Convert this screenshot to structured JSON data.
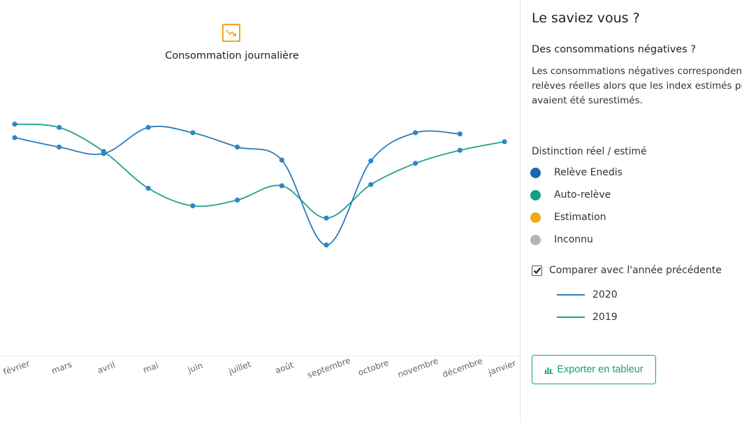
{
  "chart_data": {
    "type": "line",
    "title": "Consommation journalière",
    "categories": [
      "février",
      "mars",
      "avril",
      "mai",
      "juin",
      "juillet",
      "août",
      "septembre",
      "octobre",
      "novembre",
      "décembre",
      "janvier"
    ],
    "series": [
      {
        "name": "2020",
        "color": "#2b7bb9",
        "values": [
          6.34,
          6.11,
          5.95,
          6.59,
          6.46,
          6.11,
          5.79,
          3.71,
          5.77,
          6.46,
          6.43,
          null
        ]
      },
      {
        "name": "2019",
        "color": "#20a283",
        "values": [
          6.67,
          6.59,
          6.0,
          5.1,
          4.67,
          4.81,
          5.16,
          4.37,
          5.19,
          5.71,
          6.03,
          6.24
        ]
      }
    ],
    "ylim": [
      1,
      8
    ],
    "grid": false,
    "legend": "none"
  },
  "info": {
    "heading": "Le saviez vous ?",
    "subheading": "Des consommations négatives ?",
    "text_lines": [
      "Les consommations négatives correspondent",
      "relèves réelles alors que les index estimés pré",
      "avaient été surestimés."
    ]
  },
  "legend": {
    "title": "Distinction réel / estimé",
    "items": [
      {
        "label": "Relève Enedis",
        "color": "#1a66ae"
      },
      {
        "label": "Auto-relève",
        "color": "#13a085"
      },
      {
        "label": "Estimation",
        "color": "#f2a71b"
      },
      {
        "label": "Inconnu",
        "color": "#b4b4b4"
      }
    ]
  },
  "compare": {
    "label": "Comparer avec l'année précédente",
    "checked": true,
    "years": [
      {
        "label": "2020",
        "color": "#2b7bb9"
      },
      {
        "label": "2019",
        "color": "#20a283"
      }
    ]
  },
  "export_label": "Exporter en tableur",
  "icons": {
    "chart": "trend-down-icon",
    "export": "bar-chart-icon",
    "check": "check-icon"
  }
}
